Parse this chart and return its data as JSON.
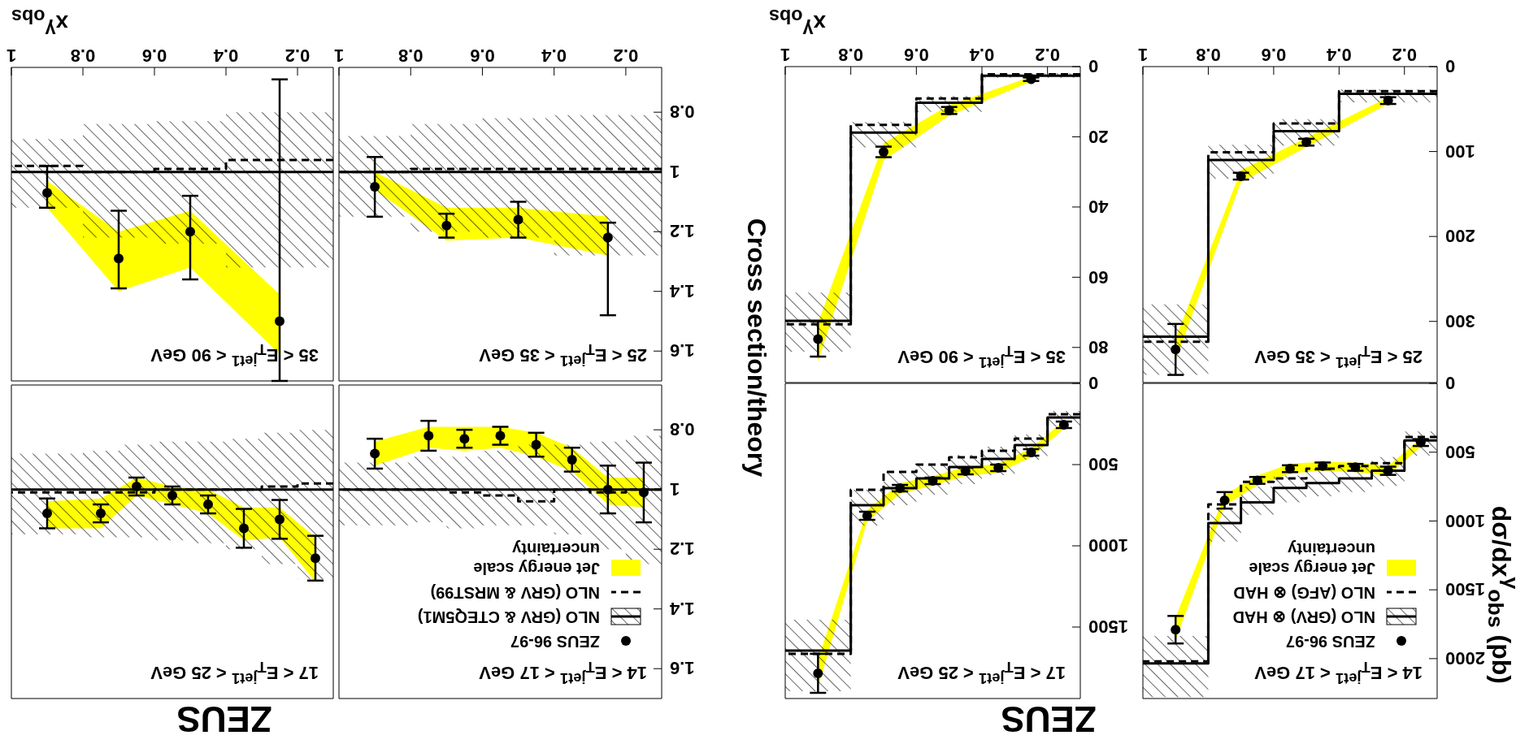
{
  "chart_data": [
    {
      "type": "scatter",
      "title": "14 < E$_{T}$$^{jet1}$ < 17 GeV",
      "ylabel": "dσ/dx$^{γ}$$_{obs}$ (pb)",
      "annotations": [
        "ZEUS"
      ],
      "xlim": [
        1,
        0.1
      ],
      "xticks": [
        0.2,
        0.4,
        0.6,
        0.8,
        1
      ],
      "ylim": [
        2290,
        0
      ],
      "yticks": [
        0,
        500,
        1000,
        1500,
        2000
      ],
      "tick_labels": "y",
      "legend": "bottom right",
      "series": [
        {
          "name": "Jet energy scale uncertainty",
          "type": "area",
          "color": "#ffff00",
          "x": [
            0.15,
            0.25,
            0.35,
            0.45,
            0.55,
            0.65,
            0.75,
            0.9
          ],
          "values": [
            null,
            null,
            null,
            null,
            null,
            null,
            null,
            null
          ],
          "lower": [
            400,
            600,
            575,
            570,
            585,
            670,
            810,
            1700
          ],
          "upper": [
            460,
            670,
            645,
            635,
            655,
            740,
            890,
            1870
          ]
        },
        {
          "name": "NLO (GRV) ⊗ HAD",
          "type": "step",
          "color": "#000000",
          "x": [
            0.1,
            0.2,
            0.3,
            0.4,
            0.5,
            0.6,
            0.7,
            0.8,
            1
          ],
          "values": [
            415,
            635,
            690,
            725,
            760,
            865,
            1015,
            2035,
            2035
          ],
          "lower": [
            350,
            535,
            585,
            635,
            670,
            750,
            915,
            1835,
            1835
          ],
          "upper": [
            525,
            745,
            790,
            820,
            865,
            955,
            1150,
            2280,
            2280
          ]
        },
        {
          "name": "NLO (AFG) ⊗ HAD",
          "type": "step",
          "color": "#000000",
          "line_style": "dashed",
          "x": [
            0.1,
            0.2,
            0.3,
            0.4,
            0.5,
            0.6,
            0.7,
            0.8,
            1
          ],
          "values": [
            390,
            580,
            600,
            620,
            690,
            715,
            880,
            2020,
            2020
          ]
        },
        {
          "name": "ZEUS 96-97",
          "type": "scatter",
          "color": "#000000",
          "marker": "circle",
          "x": [
            0.15,
            0.25,
            0.35,
            0.45,
            0.55,
            0.65,
            0.75,
            0.9
          ],
          "values": [
            430,
            635,
            610,
            600,
            620,
            705,
            850,
            1790
          ],
          "errors": [
            25,
            30,
            25,
            25,
            25,
            25,
            60,
            100
          ]
        }
      ]
    },
    {
      "type": "scatter",
      "title": "17 < E$_{T}$$^{jet1}$ < 25 GeV",
      "xlim": [
        1,
        0.1
      ],
      "xticks": [
        0.2,
        0.4,
        0.6,
        0.8,
        1
      ],
      "ylim": [
        1940,
        0
      ],
      "yticks": [
        0,
        500,
        1000,
        1500
      ],
      "tick_labels": "y",
      "series": [
        {
          "type": "area",
          "color": "#ffff00",
          "x": [
            0.15,
            0.25,
            0.35,
            0.45,
            0.55,
            0.65,
            0.75,
            0.9
          ],
          "values": [
            null,
            null,
            null,
            null,
            null,
            null,
            null,
            null
          ],
          "lower": [
            230,
            400,
            495,
            515,
            570,
            615,
            780,
            1700
          ],
          "upper": [
            280,
            455,
            550,
            570,
            630,
            680,
            850,
            1870
          ]
        },
        {
          "type": "step",
          "color": "#000000",
          "x": [
            0.1,
            0.2,
            0.3,
            0.4,
            0.5,
            0.6,
            0.7,
            0.8,
            1
          ],
          "values": [
            210,
            380,
            465,
            515,
            585,
            645,
            750,
            1645,
            1645
          ],
          "lower": [
            170,
            315,
            390,
            440,
            495,
            545,
            655,
            1455,
            1455
          ],
          "upper": [
            265,
            470,
            565,
            620,
            685,
            750,
            875,
            1895,
            1895
          ]
        },
        {
          "type": "step",
          "color": "#000000",
          "line_style": "dashed",
          "x": [
            0.1,
            0.2,
            0.3,
            0.4,
            0.5,
            0.6,
            0.7,
            0.8,
            1
          ],
          "values": [
            190,
            340,
            415,
            455,
            500,
            545,
            655,
            1665,
            1665
          ]
        },
        {
          "type": "scatter",
          "color": "#000000",
          "marker": "circle",
          "x": [
            0.15,
            0.25,
            0.35,
            0.45,
            0.55,
            0.65,
            0.75,
            0.9
          ],
          "values": [
            255,
            425,
            520,
            540,
            600,
            645,
            815,
            1785
          ],
          "errors": [
            20,
            20,
            20,
            20,
            20,
            20,
            25,
            120
          ]
        }
      ]
    },
    {
      "type": "scatter",
      "title": "25 < E$_{T}$$^{jet1}$ < 35 GeV",
      "xlim": [
        1,
        0.1
      ],
      "xticks": [
        0.2,
        0.4,
        0.6,
        0.8,
        1
      ],
      "ylim": [
        372,
        0
      ],
      "yticks": [
        0,
        100,
        200,
        300
      ],
      "series": [
        {
          "type": "area",
          "color": "#ffff00",
          "x": [
            0.25,
            0.5,
            0.7,
            0.9
          ],
          "values": [
            null,
            null,
            null,
            null
          ],
          "lower": [
            36,
            84,
            122,
            320
          ],
          "upper": [
            44,
            95,
            136,
            346
          ]
        },
        {
          "type": "step",
          "color": "#000000",
          "x": [
            0.1,
            0.4,
            0.6,
            0.8,
            1
          ],
          "values": [
            32,
            76,
            110,
            318,
            318
          ],
          "lower": [
            27,
            62,
            92,
            280,
            280
          ],
          "upper": [
            42,
            93,
            132,
            363,
            363
          ]
        },
        {
          "type": "step",
          "color": "#000000",
          "line_style": "dashed",
          "x": [
            0.1,
            0.4,
            0.6,
            0.8,
            1
          ],
          "values": [
            29,
            67,
            101,
            324,
            324
          ]
        },
        {
          "type": "scatter",
          "color": "#000000",
          "marker": "circle",
          "x": [
            0.25,
            0.5,
            0.7,
            0.9
          ],
          "values": [
            40,
            89,
            129,
            333
          ],
          "errors": [
            4,
            4,
            4,
            30
          ]
        }
      ]
    },
    {
      "type": "scatter",
      "title": "35 < E$_{T}$$^{jet1}$ < 90 GeV",
      "xlabel": "x$^{γ}$$_{obs}$",
      "xlim": [
        1,
        0.1
      ],
      "xticks": [
        0.2,
        0.4,
        0.6,
        0.8,
        1
      ],
      "ylim": [
        90,
        0
      ],
      "yticks": [
        0,
        20,
        40,
        60,
        80
      ],
      "series": [
        {
          "type": "area",
          "color": "#ffff00",
          "x": [
            0.25,
            0.5,
            0.7,
            0.9
          ],
          "values": [
            null,
            null,
            null,
            null
          ],
          "lower": [
            2.9,
            11,
            21.8,
            73
          ],
          "upper": [
            4.3,
            14,
            26.8,
            84
          ]
        },
        {
          "type": "step",
          "color": "#000000",
          "x": [
            0.1,
            0.4,
            0.6,
            0.8,
            1
          ],
          "values": [
            2.6,
            10.3,
            18.8,
            72.4,
            72.4
          ],
          "lower": [
            1.9,
            8.4,
            15.8,
            64.4,
            64.4
          ],
          "upper": [
            3.2,
            12.9,
            23,
            81.2,
            81.2
          ]
        },
        {
          "type": "step",
          "color": "#000000",
          "line_style": "dashed",
          "x": [
            0.1,
            0.4,
            0.6,
            0.8,
            1
          ],
          "values": [
            2.2,
            9.1,
            16.6,
            73.4,
            73.4
          ]
        },
        {
          "type": "scatter",
          "color": "#000000",
          "marker": "circle",
          "x": [
            0.25,
            0.5,
            0.7,
            0.9
          ],
          "values": [
            3.6,
            12.5,
            24.3,
            77.6
          ],
          "errors": [
            0.5,
            1,
            1.5,
            5
          ]
        }
      ]
    },
    {
      "type": "scatter",
      "title": "14 < E$_{T}$$^{jet1}$ < 17 GeV",
      "ylabel": "Cross section/theory",
      "annotations": [
        "ZEUS"
      ],
      "xlim": [
        1,
        0.1
      ],
      "xticks": [
        0.2,
        0.4,
        0.6,
        0.8,
        1
      ],
      "ylim": [
        1.7,
        0.65
      ],
      "yticks": [
        0.8,
        1,
        1.2,
        1.4,
        1.6
      ],
      "tick_labels": "y",
      "legend": "bottom right",
      "series": [
        {
          "name": "Jet energy scale uncertainty",
          "type": "area",
          "color": "#ffff00",
          "x": [
            0.15,
            0.25,
            0.35,
            0.45,
            0.55,
            0.65,
            0.75,
            0.9
          ],
          "values": [
            null,
            null,
            null,
            null,
            null,
            null,
            null,
            null
          ],
          "lower": [
            0.96,
            0.96,
            0.86,
            0.81,
            0.79,
            0.79,
            0.79,
            0.84
          ],
          "upper": [
            1.06,
            1.05,
            0.94,
            0.89,
            0.86,
            0.87,
            0.86,
            0.92
          ]
        },
        {
          "name": "NLO (GRV & CTEQ5M1)",
          "type": "step",
          "color": "#000000",
          "x": [
            0.1,
            0.2,
            0.3,
            0.4,
            0.5,
            0.6,
            0.7,
            0.8,
            1
          ],
          "values": [
            1,
            1,
            1,
            1,
            1,
            1,
            1,
            1,
            1
          ],
          "lower": [
            0.82,
            0.84,
            0.85,
            0.85,
            0.87,
            0.89,
            0.89,
            0.91,
            0.91
          ],
          "upper": [
            1.25,
            1.2,
            1.15,
            1.12,
            1.12,
            1.13,
            1.11,
            1.12,
            1.12
          ]
        },
        {
          "name": "NLO (GRV & MRST99)",
          "type": "step",
          "color": "#000000",
          "line_style": "dashed",
          "x": [
            0.1,
            0.2,
            0.3,
            0.4,
            0.5,
            0.6,
            0.7,
            0.8,
            1
          ],
          "values": [
            1,
            1.01,
            1,
            1.04,
            1.02,
            1.01,
            1,
            1,
            1
          ]
        },
        {
          "name": "ZEUS 96-97",
          "type": "scatter",
          "color": "#000000",
          "marker": "circle",
          "x": [
            0.15,
            0.25,
            0.35,
            0.45,
            0.55,
            0.65,
            0.75,
            0.9
          ],
          "values": [
            1.01,
            1,
            0.9,
            0.85,
            0.82,
            0.83,
            0.82,
            0.88
          ],
          "errors": [
            0.1,
            0.08,
            0.04,
            0.04,
            0.03,
            0.03,
            0.05,
            0.05
          ]
        }
      ]
    },
    {
      "type": "scatter",
      "title": "17 < E$_{T}$$^{jet1}$ < 25 GeV",
      "xlim": [
        1,
        0.1
      ],
      "xticks": [
        0.2,
        0.4,
        0.6,
        0.8,
        1
      ],
      "ylim": [
        1.7,
        0.65
      ],
      "yticks": [
        0.8,
        1,
        1.2,
        1.4,
        1.6
      ],
      "tick_labels": false,
      "series": [
        {
          "type": "area",
          "color": "#ffff00",
          "x": [
            0.15,
            0.25,
            0.35,
            0.45,
            0.55,
            0.65,
            0.75,
            0.9
          ],
          "values": [
            null,
            null,
            null,
            null,
            null,
            null,
            null,
            null
          ],
          "lower": [
            1.16,
            1.06,
            1.06,
            1,
            0.99,
            0.96,
            1.03,
            1.04
          ],
          "upper": [
            1.31,
            1.16,
            1.17,
            1.08,
            1.05,
            1.02,
            1.13,
            1.13
          ]
        },
        {
          "type": "step",
          "color": "#000000",
          "x": [
            0.1,
            0.2,
            0.3,
            0.4,
            0.5,
            0.6,
            0.7,
            0.8,
            1
          ],
          "values": [
            1,
            1,
            1,
            1,
            1,
            1,
            1,
            1,
            1
          ],
          "lower": [
            0.8,
            0.81,
            0.83,
            0.84,
            0.84,
            0.85,
            0.87,
            0.88,
            0.88
          ],
          "upper": [
            1.3,
            1.25,
            1.2,
            1.18,
            1.17,
            1.16,
            1.16,
            1.15,
            1.15
          ]
        },
        {
          "type": "step",
          "color": "#000000",
          "line_style": "dashed",
          "x": [
            0.1,
            0.2,
            0.3,
            0.4,
            0.5,
            0.6,
            0.7,
            0.8,
            1
          ],
          "values": [
            0.98,
            0.99,
            1,
            1,
            1,
            1.01,
            1.01,
            1.01,
            1.01
          ]
        },
        {
          "type": "scatter",
          "color": "#000000",
          "marker": "circle",
          "x": [
            0.15,
            0.25,
            0.35,
            0.45,
            0.55,
            0.65,
            0.75,
            0.9
          ],
          "values": [
            1.23,
            1.1,
            1.13,
            1.05,
            1.02,
            0.99,
            1.08,
            1.08
          ],
          "errors": [
            0.075,
            0.065,
            0.065,
            0.03,
            0.03,
            0.03,
            0.03,
            0.05
          ]
        }
      ]
    },
    {
      "type": "scatter",
      "title": "25 < E$_{T}$$^{jet1}$ < 35 GeV",
      "xlim": [
        1,
        0.1
      ],
      "xticks": [
        0.2,
        0.4,
        0.6,
        0.8,
        1
      ],
      "ylim": [
        1.7,
        0.65
      ],
      "yticks": [
        0.8,
        1,
        1.2,
        1.4,
        1.6
      ],
      "series": [
        {
          "type": "area",
          "color": "#ffff00",
          "x": [
            0.25,
            0.5,
            0.7,
            0.9
          ],
          "values": [
            null,
            null,
            null,
            null
          ],
          "lower": [
            1.15,
            1.12,
            1.12,
            1
          ],
          "upper": [
            1.28,
            1.22,
            1.23,
            1.06
          ]
        },
        {
          "type": "step",
          "color": "#000000",
          "x": [
            0.1,
            0.4,
            0.6,
            0.8,
            1
          ],
          "values": [
            1,
            1,
            1,
            1,
            1
          ],
          "lower": [
            0.81,
            0.82,
            0.84,
            0.88,
            0.88
          ],
          "upper": [
            1.28,
            1.22,
            1.2,
            1.15,
            1.15
          ]
        },
        {
          "type": "step",
          "color": "#000000",
          "line_style": "dashed",
          "x": [
            0.1,
            0.4,
            0.6,
            0.8,
            1
          ],
          "values": [
            0.99,
            0.99,
            0.99,
            1,
            1
          ]
        },
        {
          "type": "scatter",
          "color": "#000000",
          "marker": "circle",
          "x": [
            0.25,
            0.5,
            0.7,
            0.9
          ],
          "values": [
            1.22,
            1.16,
            1.18,
            1.05
          ],
          "errors": [
            [
              1.17,
              1.48
            ],
            0.06,
            0.04,
            0.1
          ]
        }
      ]
    },
    {
      "type": "scatter",
      "title": "35 < E$_{T}$$^{jet1}$ < 90 GeV",
      "xlabel": "x$^{γ}$$_{obs}$",
      "xlim": [
        1,
        0.1
      ],
      "xticks": [
        0.2,
        0.4,
        0.6,
        0.8,
        1
      ],
      "ylim": [
        1.7,
        0.65
      ],
      "yticks": [
        0.8,
        1,
        1.2,
        1.4,
        1.6
      ],
      "tick_labels": "x",
      "series": [
        {
          "type": "area",
          "color": "#ffff00",
          "x": [
            0.25,
            0.5,
            0.7,
            0.9
          ],
          "values": [
            null,
            null,
            null,
            null
          ],
          "lower": [
            1.41,
            1.13,
            1.2,
            1.03
          ],
          "upper": [
            1.61,
            1.32,
            1.4,
            1.12
          ]
        },
        {
          "type": "step",
          "color": "#000000",
          "x": [
            0.1,
            0.4,
            0.6,
            0.8,
            1
          ],
          "values": [
            1,
            1,
            1,
            1,
            1
          ],
          "lower": [
            0.8,
            0.83,
            0.84,
            0.89,
            0.89
          ],
          "upper": [
            1.32,
            1.24,
            1.22,
            1.12,
            1.12
          ]
        },
        {
          "type": "step",
          "color": "#000000",
          "line_style": "dashed",
          "x": [
            0.1,
            0.4,
            0.6,
            0.8,
            1
          ],
          "values": [
            0.96,
            0.99,
            1,
            0.98,
            0.98
          ]
        },
        {
          "type": "scatter",
          "color": "#000000",
          "marker": "circle",
          "x": [
            0.25,
            0.5,
            0.7,
            0.9
          ],
          "values": [
            1.5,
            1.2,
            1.29,
            1.07
          ],
          "errors": [
            [
              0.69,
              1.7
            ],
            [
              1.08,
              1.36
            ],
            [
              1.13,
              1.39
            ],
            [
              0.98,
              1.12
            ]
          ]
        }
      ]
    }
  ]
}
